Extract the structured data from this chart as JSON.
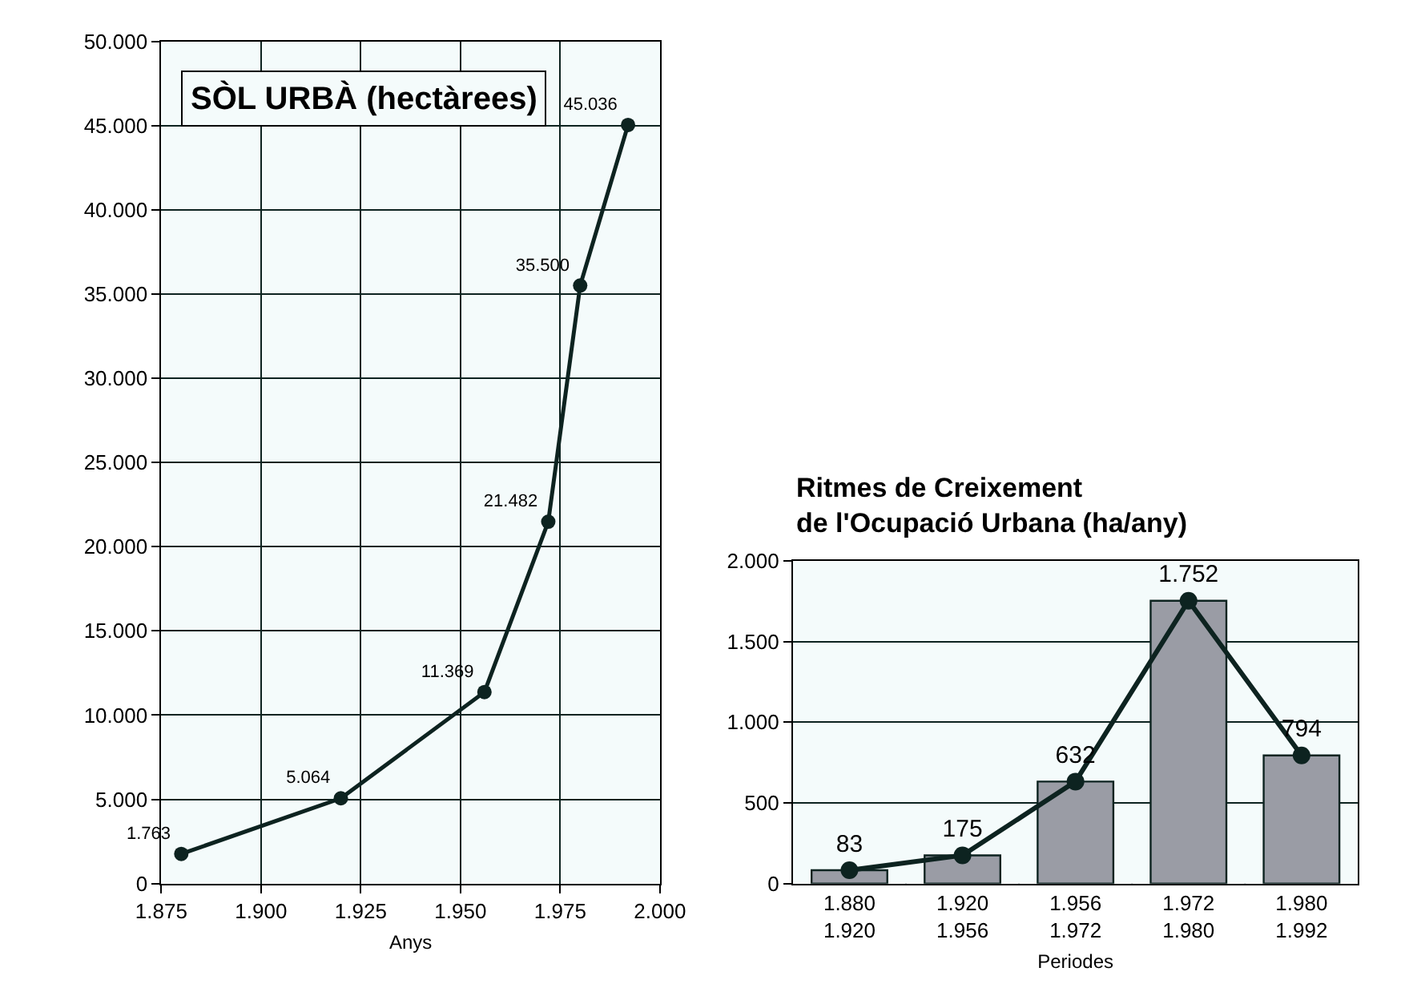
{
  "chart_data": [
    {
      "type": "line",
      "title": "SÒL URBÀ (hectàrees)",
      "xlabel": "Anys",
      "x": [
        1880,
        1920,
        1956,
        1972,
        1980,
        1992
      ],
      "series": [
        {
          "color": "#0d2320",
          "values": [
            1763,
            5064,
            11369,
            21482,
            35500,
            45036
          ],
          "value_labels": [
            "1.763",
            "5.064",
            "11.369",
            "21.482",
            "35.500",
            "45.036"
          ]
        }
      ],
      "xlim": [
        1875,
        2000
      ],
      "xticks": [
        {
          "value": 1875,
          "label": "1.875"
        },
        {
          "value": 1900,
          "label": "1.900"
        },
        {
          "value": 1925,
          "label": "1.925"
        },
        {
          "value": 1950,
          "label": "1.950"
        },
        {
          "value": 1975,
          "label": "1.975"
        },
        {
          "value": 2000,
          "label": "2.000"
        }
      ],
      "ylim": [
        0,
        50000
      ],
      "yticks": [
        0,
        {
          "value": 5000,
          "label": "5.000"
        },
        {
          "value": 10000,
          "label": "10.000"
        },
        {
          "value": 15000,
          "label": "15.000"
        },
        {
          "value": 20000,
          "label": "20.000"
        },
        {
          "value": 25000,
          "label": "25.000"
        },
        {
          "value": 30000,
          "label": "30.000"
        },
        {
          "value": 35000,
          "label": "35.000"
        },
        {
          "value": 40000,
          "label": "40.000"
        },
        {
          "value": 45000,
          "label": "45.000"
        },
        {
          "value": 50000,
          "label": "50.000"
        }
      ],
      "grid": true,
      "marker": "circle",
      "line_style": "solid",
      "legend": false
    },
    {
      "type": "bar",
      "title": "Ritmes de Creixement\nde l'Ocupació Urbana (ha/any)",
      "xlabel": "Periodes",
      "categories": [
        "1.880\n1.920",
        "1.920\n1.956",
        "1.956\n1.972",
        "1.972\n1.980",
        "1.980\n1.992"
      ],
      "series": [
        {
          "type": "bar",
          "color": "#9a9ca5",
          "values": [
            83,
            175,
            632,
            1752,
            794
          ]
        },
        {
          "type": "line",
          "color": "#0d2320",
          "values": [
            83,
            175,
            632,
            1752,
            794
          ],
          "value_labels": [
            "83",
            "175",
            "632",
            "1.752",
            "794"
          ]
        }
      ],
      "ylim": [
        0,
        2000
      ],
      "yticks": [
        0,
        500,
        {
          "value": 1000,
          "label": "1.000"
        },
        {
          "value": 1500,
          "label": "1.500"
        },
        {
          "value": 2000,
          "label": "2.000"
        }
      ],
      "grid": true,
      "marker": "circle",
      "line_style": "solid",
      "legend": false
    }
  ]
}
